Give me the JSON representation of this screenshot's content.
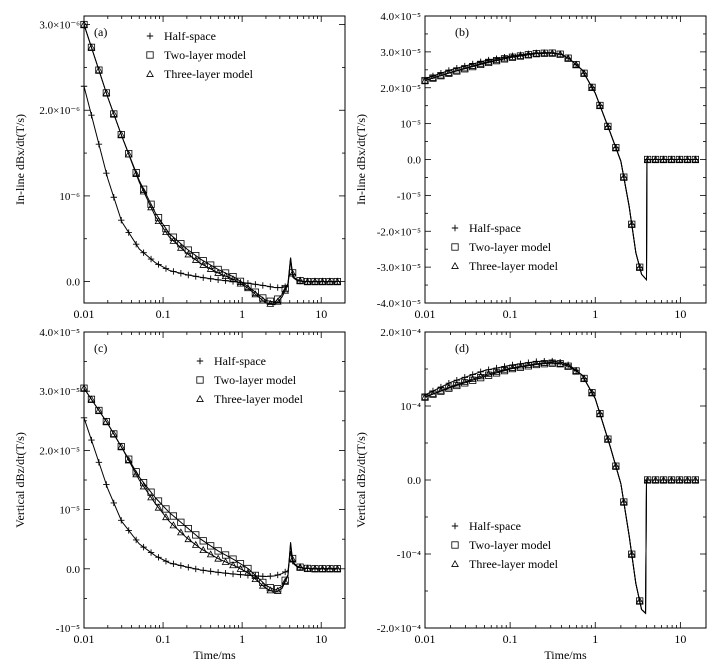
{
  "chart_data": [
    {
      "type": "line",
      "panel_label": "(a)",
      "xscale": "log",
      "xlim": [
        0.01,
        20
      ],
      "x_ticks": [
        "0.01",
        "0.1",
        "1",
        "10"
      ],
      "ylim": [
        -0.25,
        3.1
      ],
      "y_tick_values": [
        0,
        1,
        2,
        3
      ],
      "y_ticks": [
        "0.0",
        "10⁻⁶",
        "2.0×10⁻⁶",
        "3.0×10⁻⁶"
      ],
      "ylabel": "In-line dBx/dt(T/s)",
      "xlabel": "",
      "legend": "top-center",
      "series": [
        {
          "name": "Half-space",
          "marker": "plus",
          "x": [
            0.01,
            0.02,
            0.03,
            0.05,
            0.08,
            0.12,
            0.2,
            0.3,
            0.5,
            0.8,
            1.2,
            2,
            2.6,
            3.2,
            3.8,
            4.1,
            4.3,
            4.5,
            5,
            6,
            8,
            12,
            16
          ],
          "y": [
            2.28,
            1.2,
            0.7,
            0.38,
            0.22,
            0.13,
            0.08,
            0.05,
            0.02,
            0,
            -0.02,
            -0.05,
            -0.07,
            -0.07,
            -0.05,
            0.25,
            0.1,
            0.04,
            0.01,
            0,
            0,
            0,
            0
          ]
        },
        {
          "name": "Two-layer model",
          "marker": "square",
          "x": [
            0.01,
            0.02,
            0.03,
            0.05,
            0.08,
            0.12,
            0.2,
            0.3,
            0.5,
            0.8,
            1.2,
            2,
            2.6,
            3.2,
            3.8,
            4.1,
            4.3,
            4.5,
            5,
            6,
            8,
            12,
            16
          ],
          "y": [
            3.0,
            2.15,
            1.7,
            1.18,
            0.8,
            0.56,
            0.38,
            0.26,
            0.14,
            0.05,
            -0.06,
            -0.22,
            -0.24,
            -0.15,
            -0.02,
            0.28,
            0.12,
            0.05,
            0.02,
            0,
            0,
            0,
            0
          ]
        },
        {
          "name": "Three-layer model",
          "marker": "triangle",
          "x": [
            0.01,
            0.02,
            0.03,
            0.05,
            0.08,
            0.12,
            0.2,
            0.3,
            0.5,
            0.8,
            1.2,
            2,
            2.6,
            3.2,
            3.8,
            4.1,
            4.3,
            4.5,
            5,
            6,
            8,
            12,
            16
          ],
          "y": [
            3.0,
            2.15,
            1.7,
            1.16,
            0.76,
            0.52,
            0.33,
            0.21,
            0.1,
            0.02,
            -0.08,
            -0.25,
            -0.27,
            -0.18,
            -0.04,
            0.27,
            0.11,
            0.05,
            0.02,
            0,
            0,
            0,
            0
          ]
        }
      ]
    },
    {
      "type": "line",
      "panel_label": "(b)",
      "xscale": "log",
      "xlim": [
        0.01,
        20
      ],
      "x_ticks": [
        "0.01",
        "0.1",
        "1",
        "10"
      ],
      "ylim": [
        -4,
        4
      ],
      "y_tick_values": [
        -4,
        -3,
        -2,
        -1,
        0,
        1,
        2,
        3,
        4
      ],
      "y_ticks": [
        "-4.0×10⁻⁵",
        "-3.0×10⁻⁵",
        "-2.0×10⁻⁵",
        "-10⁻⁵",
        "0.0",
        "10⁻⁵",
        "2.0×10⁻⁵",
        "3.0×10⁻⁵",
        "4.0×10⁻⁵"
      ],
      "ylabel": "In-line dBx/dt(T/s)",
      "xlabel": "",
      "legend": "bottom-left",
      "series": [
        {
          "name": "Half-space",
          "marker": "plus",
          "x": [
            0.01,
            0.02,
            0.05,
            0.1,
            0.2,
            0.3,
            0.4,
            0.5,
            0.7,
            1,
            1.5,
            2,
            2.5,
            3,
            3.5,
            4,
            4.05,
            5,
            7,
            10,
            15
          ],
          "y": [
            2.25,
            2.5,
            2.75,
            2.88,
            2.97,
            2.98,
            2.93,
            2.8,
            2.5,
            1.85,
            0.75,
            -0.05,
            -1.3,
            -2.6,
            -3.2,
            -3.35,
            0,
            0,
            0,
            0,
            0
          ]
        },
        {
          "name": "Two-layer model",
          "marker": "square",
          "x": [
            0.01,
            0.02,
            0.05,
            0.1,
            0.2,
            0.3,
            0.4,
            0.5,
            0.7,
            1,
            1.5,
            2,
            2.5,
            3,
            3.5,
            4,
            4.05,
            5,
            7,
            10,
            15
          ],
          "y": [
            2.2,
            2.42,
            2.68,
            2.84,
            2.95,
            2.97,
            2.93,
            2.8,
            2.5,
            1.85,
            0.75,
            -0.05,
            -1.3,
            -2.6,
            -3.2,
            -3.35,
            0,
            0,
            0,
            0,
            0
          ]
        },
        {
          "name": "Three-layer model",
          "marker": "triangle",
          "x": [
            0.01,
            0.02,
            0.05,
            0.1,
            0.2,
            0.3,
            0.4,
            0.5,
            0.7,
            1,
            1.5,
            2,
            2.5,
            3,
            3.5,
            4,
            4.05,
            5,
            7,
            10,
            15
          ],
          "y": [
            2.2,
            2.43,
            2.7,
            2.85,
            2.95,
            2.97,
            2.93,
            2.8,
            2.5,
            1.85,
            0.75,
            -0.05,
            -1.3,
            -2.6,
            -3.2,
            -3.35,
            0,
            0,
            0,
            0,
            0
          ]
        }
      ]
    },
    {
      "type": "line",
      "panel_label": "(c)",
      "xscale": "log",
      "xlim": [
        0.01,
        20
      ],
      "x_ticks": [
        "0.01",
        "0.1",
        "1",
        "10"
      ],
      "ylim": [
        -1,
        4
      ],
      "y_tick_values": [
        -1,
        0,
        1,
        2,
        3,
        4
      ],
      "y_ticks": [
        "-10⁻⁵",
        "0.0",
        "10⁻⁵",
        "2.0×10⁻⁵",
        "3.0×10⁻⁵",
        "4.0×10⁻⁵"
      ],
      "ylabel": "Vertical dBz/dt(T/s)",
      "xlabel": "Time/ms",
      "legend": "top-center",
      "series": [
        {
          "name": "Half-space",
          "marker": "plus",
          "x": [
            0.01,
            0.02,
            0.03,
            0.05,
            0.08,
            0.12,
            0.2,
            0.3,
            0.5,
            0.8,
            1.2,
            2,
            2.6,
            3.2,
            3.8,
            4.1,
            4.3,
            4.5,
            5,
            6,
            8,
            12,
            16
          ],
          "y": [
            2.55,
            1.35,
            0.8,
            0.42,
            0.22,
            0.1,
            0.03,
            -0.02,
            -0.06,
            -0.09,
            -0.11,
            -0.13,
            -0.12,
            -0.08,
            -0.03,
            0.3,
            0.15,
            0.08,
            0.03,
            0.01,
            0,
            0,
            0
          ]
        },
        {
          "name": "Two-layer model",
          "marker": "square",
          "x": [
            0.01,
            0.02,
            0.03,
            0.05,
            0.08,
            0.12,
            0.2,
            0.3,
            0.5,
            0.8,
            1.2,
            2,
            2.6,
            3.2,
            3.8,
            4.1,
            4.3,
            4.5,
            5,
            6,
            8,
            12,
            16
          ],
          "y": [
            3.05,
            2.45,
            2.05,
            1.55,
            1.2,
            0.95,
            0.7,
            0.5,
            0.3,
            0.15,
            0,
            -0.28,
            -0.36,
            -0.3,
            -0.1,
            0.45,
            0.2,
            0.1,
            0.04,
            0.01,
            0,
            0,
            0
          ]
        },
        {
          "name": "Three-layer model",
          "marker": "triangle",
          "x": [
            0.01,
            0.02,
            0.03,
            0.05,
            0.08,
            0.12,
            0.2,
            0.3,
            0.5,
            0.8,
            1.2,
            2,
            2.6,
            3.2,
            3.8,
            4.1,
            4.3,
            4.5,
            5,
            6,
            8,
            12,
            16
          ],
          "y": [
            3.05,
            2.45,
            2.05,
            1.5,
            1.1,
            0.8,
            0.52,
            0.34,
            0.17,
            0.05,
            -0.07,
            -0.33,
            -0.4,
            -0.33,
            -0.12,
            0.42,
            0.18,
            0.09,
            0.04,
            0.01,
            0,
            0,
            0
          ]
        }
      ]
    },
    {
      "type": "line",
      "panel_label": "(d)",
      "xscale": "log",
      "xlim": [
        0.01,
        20
      ],
      "x_ticks": [
        "0.01",
        "0.1",
        "1",
        "10"
      ],
      "ylim": [
        -2,
        2
      ],
      "y_tick_values": [
        -2,
        -1,
        0,
        1,
        2
      ],
      "y_ticks": [
        "-2.0×10⁻⁴",
        "-10⁻⁴",
        "0.0",
        "10⁻⁴",
        "2.0×10⁻⁴"
      ],
      "ylabel": "Vertical dBz/dt(T/s)",
      "xlabel": "Time/ms",
      "legend": "bottom-left",
      "series": [
        {
          "name": "Half-space",
          "marker": "plus",
          "x": [
            0.01,
            0.02,
            0.05,
            0.1,
            0.2,
            0.3,
            0.4,
            0.5,
            0.7,
            1,
            1.5,
            2,
            2.5,
            3,
            3.5,
            3.9,
            4,
            5,
            7,
            10,
            15
          ],
          "y": [
            1.15,
            1.32,
            1.48,
            1.55,
            1.6,
            1.61,
            1.59,
            1.55,
            1.42,
            1.1,
            0.45,
            -0.05,
            -0.75,
            -1.4,
            -1.75,
            -1.8,
            0,
            0,
            0,
            0,
            0
          ]
        },
        {
          "name": "Two-layer model",
          "marker": "square",
          "x": [
            0.01,
            0.02,
            0.05,
            0.1,
            0.2,
            0.3,
            0.4,
            0.5,
            0.7,
            1,
            1.5,
            2,
            2.5,
            3,
            3.5,
            3.9,
            4,
            5,
            7,
            10,
            15
          ],
          "y": [
            1.12,
            1.25,
            1.4,
            1.5,
            1.56,
            1.58,
            1.57,
            1.53,
            1.42,
            1.1,
            0.45,
            -0.05,
            -0.75,
            -1.4,
            -1.75,
            -1.8,
            0,
            0,
            0,
            0,
            0
          ]
        },
        {
          "name": "Three-layer model",
          "marker": "triangle",
          "x": [
            0.01,
            0.02,
            0.05,
            0.1,
            0.2,
            0.3,
            0.4,
            0.5,
            0.7,
            1,
            1.5,
            2,
            2.5,
            3,
            3.5,
            3.9,
            4,
            5,
            7,
            10,
            15
          ],
          "y": [
            1.12,
            1.26,
            1.42,
            1.51,
            1.57,
            1.59,
            1.57,
            1.53,
            1.42,
            1.1,
            0.45,
            -0.05,
            -0.75,
            -1.4,
            -1.75,
            -1.8,
            0,
            0,
            0,
            0,
            0
          ]
        }
      ]
    }
  ]
}
